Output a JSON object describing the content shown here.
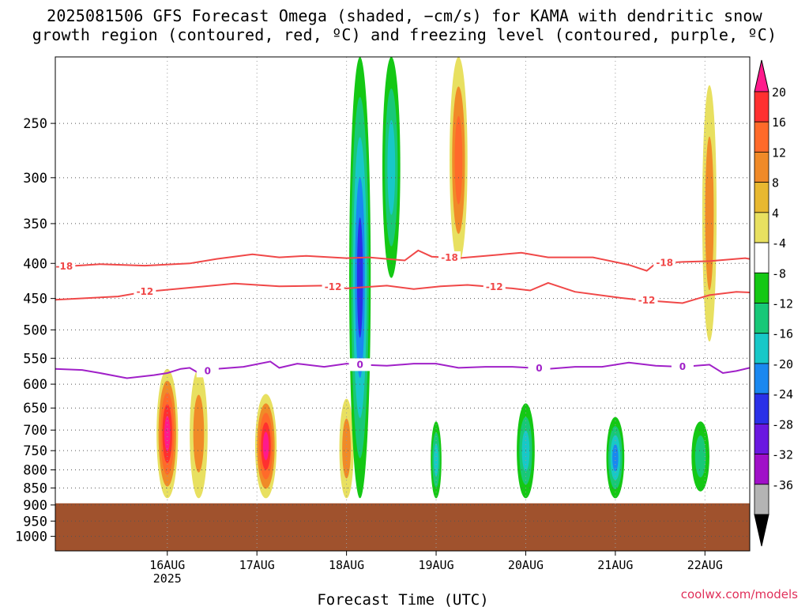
{
  "title_line1": "2025081506 GFS Forecast Omega (shaded, −cm/s) for KAMA with dendritic snow",
  "title_line2": "growth region (contoured, red, ºC) and freezing level (contoured, purple, ºC)",
  "watermark": "coolwx.com/models",
  "colors": {
    "dgz_contour": "#f04848",
    "freezing_contour": "#a020c8",
    "ground": "#a0522d"
  },
  "chart_data": {
    "type": "heatmap",
    "title": "2025081506 GFS Forecast Omega (shaded, −cm/s) for KAMA with dendritic snow growth region (contoured, red, ºC) and freezing level (contoured, purple, ºC)",
    "xlabel": "Forecast Time (UTC)",
    "ylabel": "",
    "y_axis": {
      "ticks": [
        250,
        300,
        350,
        400,
        450,
        500,
        550,
        600,
        650,
        700,
        750,
        800,
        850,
        900,
        950,
        1000
      ],
      "tick_labels": [
        "250",
        "300",
        "350",
        "400",
        "450",
        "500",
        "550",
        "600",
        "650",
        "700",
        "750",
        "800",
        "850",
        "900",
        "950",
        "1000"
      ],
      "inverted": true,
      "log_pressure": true,
      "range": [
        200,
        1050
      ]
    },
    "x_axis": {
      "ticks": [
        1.75,
        2.75,
        3.75,
        4.75,
        5.75,
        6.75,
        7.75
      ],
      "tick_labels": [
        "16AUG",
        "17AUG",
        "18AUG",
        "19AUG",
        "20AUG",
        "21AUG",
        "22AUG"
      ],
      "sub_label": "2025",
      "range": [
        0.5,
        8.25
      ]
    },
    "grid": true,
    "colorbar": {
      "labels": [
        "20",
        "16",
        "12",
        "8",
        "4",
        "-4",
        "-8",
        "-12",
        "-16",
        "-20",
        "-24",
        "-28",
        "-32",
        "-36"
      ],
      "colors": [
        "#ff1a8c",
        "#ff3030",
        "#ff6a2a",
        "#f08a28",
        "#e8b830",
        "#e8e060",
        "#ffffff",
        "#14c814",
        "#18c878",
        "#18c8c8",
        "#1a88f0",
        "#2a30e8",
        "#6a18e0",
        "#a010c8",
        "#b4b4b4",
        "#000000"
      ]
    },
    "dgz_contours": [
      {
        "temp_c": -18,
        "label": "-18",
        "points": [
          [
            0.5,
            405
          ],
          [
            1.0,
            401
          ],
          [
            1.5,
            403
          ],
          [
            2.0,
            400
          ],
          [
            2.3,
            394
          ],
          [
            2.7,
            388
          ],
          [
            3.0,
            392
          ],
          [
            3.3,
            390
          ],
          [
            3.75,
            393
          ],
          [
            4.0,
            392
          ],
          [
            4.4,
            396
          ],
          [
            4.55,
            383
          ],
          [
            4.7,
            391
          ],
          [
            5.0,
            393
          ],
          [
            5.3,
            390
          ],
          [
            5.7,
            386
          ],
          [
            6.0,
            392
          ],
          [
            6.5,
            392
          ],
          [
            6.9,
            402
          ],
          [
            7.1,
            410
          ],
          [
            7.2,
            400
          ],
          [
            7.5,
            398
          ],
          [
            7.8,
            397
          ],
          [
            8.2,
            393
          ],
          [
            8.25,
            394
          ]
        ],
        "label_at": [
          0.6,
          4.9,
          7.3
        ]
      },
      {
        "temp_c": -12,
        "label": "-12",
        "points": [
          [
            0.5,
            452
          ],
          [
            1.2,
            447
          ],
          [
            1.5,
            440
          ],
          [
            2.0,
            434
          ],
          [
            2.5,
            428
          ],
          [
            3.0,
            432
          ],
          [
            3.5,
            431
          ],
          [
            3.75,
            435
          ],
          [
            4.2,
            431
          ],
          [
            4.5,
            436
          ],
          [
            4.8,
            432
          ],
          [
            5.1,
            430
          ],
          [
            5.6,
            435
          ],
          [
            5.8,
            438
          ],
          [
            6.0,
            427
          ],
          [
            6.3,
            440
          ],
          [
            6.8,
            449
          ],
          [
            7.0,
            452
          ],
          [
            7.5,
            457
          ],
          [
            7.8,
            445
          ],
          [
            8.1,
            440
          ],
          [
            8.25,
            441
          ]
        ],
        "label_at": [
          1.5,
          3.6,
          5.4,
          7.1
        ]
      },
      {
        "temp_c": 0,
        "label": "0",
        "points": [
          [
            0.5,
            570
          ],
          [
            0.8,
            572
          ],
          [
            1.0,
            578
          ],
          [
            1.3,
            588
          ],
          [
            1.6,
            582
          ],
          [
            1.75,
            578
          ],
          [
            1.9,
            570
          ],
          [
            2.0,
            568
          ],
          [
            2.1,
            578
          ],
          [
            2.3,
            570
          ],
          [
            2.6,
            566
          ],
          [
            2.9,
            556
          ],
          [
            3.0,
            568
          ],
          [
            3.2,
            560
          ],
          [
            3.5,
            566
          ],
          [
            3.75,
            560
          ],
          [
            3.9,
            562
          ],
          [
            4.2,
            564
          ],
          [
            4.5,
            560
          ],
          [
            4.75,
            560
          ],
          [
            5.0,
            568
          ],
          [
            5.3,
            566
          ],
          [
            5.6,
            566
          ],
          [
            5.8,
            568
          ],
          [
            6.0,
            570
          ],
          [
            6.3,
            566
          ],
          [
            6.6,
            566
          ],
          [
            6.9,
            558
          ],
          [
            7.2,
            564
          ],
          [
            7.5,
            566
          ],
          [
            7.8,
            562
          ],
          [
            7.95,
            578
          ],
          [
            8.1,
            574
          ],
          [
            8.25,
            568
          ]
        ],
        "label_at": [
          2.2,
          3.9,
          5.9,
          7.5
        ]
      }
    ],
    "omega_features": [
      {
        "t": 1.75,
        "p_top": 570,
        "p_bot": 880,
        "val": 22,
        "w": 0.12
      },
      {
        "t": 2.1,
        "p_top": 570,
        "p_bot": 880,
        "val": 10,
        "w": 0.1
      },
      {
        "t": 2.85,
        "p_top": 620,
        "p_bot": 880,
        "val": 22,
        "w": 0.12
      },
      {
        "t": 3.75,
        "p_top": 630,
        "p_bot": 880,
        "val": 12,
        "w": 0.08
      },
      {
        "t": 3.9,
        "p_top": 200,
        "p_bot": 880,
        "val": -22,
        "w": 0.12
      },
      {
        "t": 4.25,
        "p_top": 200,
        "p_bot": 420,
        "val": -14,
        "w": 0.1
      },
      {
        "t": 4.75,
        "p_top": 680,
        "p_bot": 880,
        "val": -14,
        "w": 0.06
      },
      {
        "t": 5.0,
        "p_top": 200,
        "p_bot": 400,
        "val": 16,
        "w": 0.1
      },
      {
        "t": 5.75,
        "p_top": 640,
        "p_bot": 880,
        "val": -14,
        "w": 0.1
      },
      {
        "t": 6.75,
        "p_top": 670,
        "p_bot": 880,
        "val": -20,
        "w": 0.1
      },
      {
        "t": 7.8,
        "p_top": 220,
        "p_bot": 520,
        "val": 10,
        "w": 0.08
      },
      {
        "t": 7.7,
        "p_top": 680,
        "p_bot": 860,
        "val": -10,
        "w": 0.1
      }
    ],
    "ground_pressure": 895
  }
}
